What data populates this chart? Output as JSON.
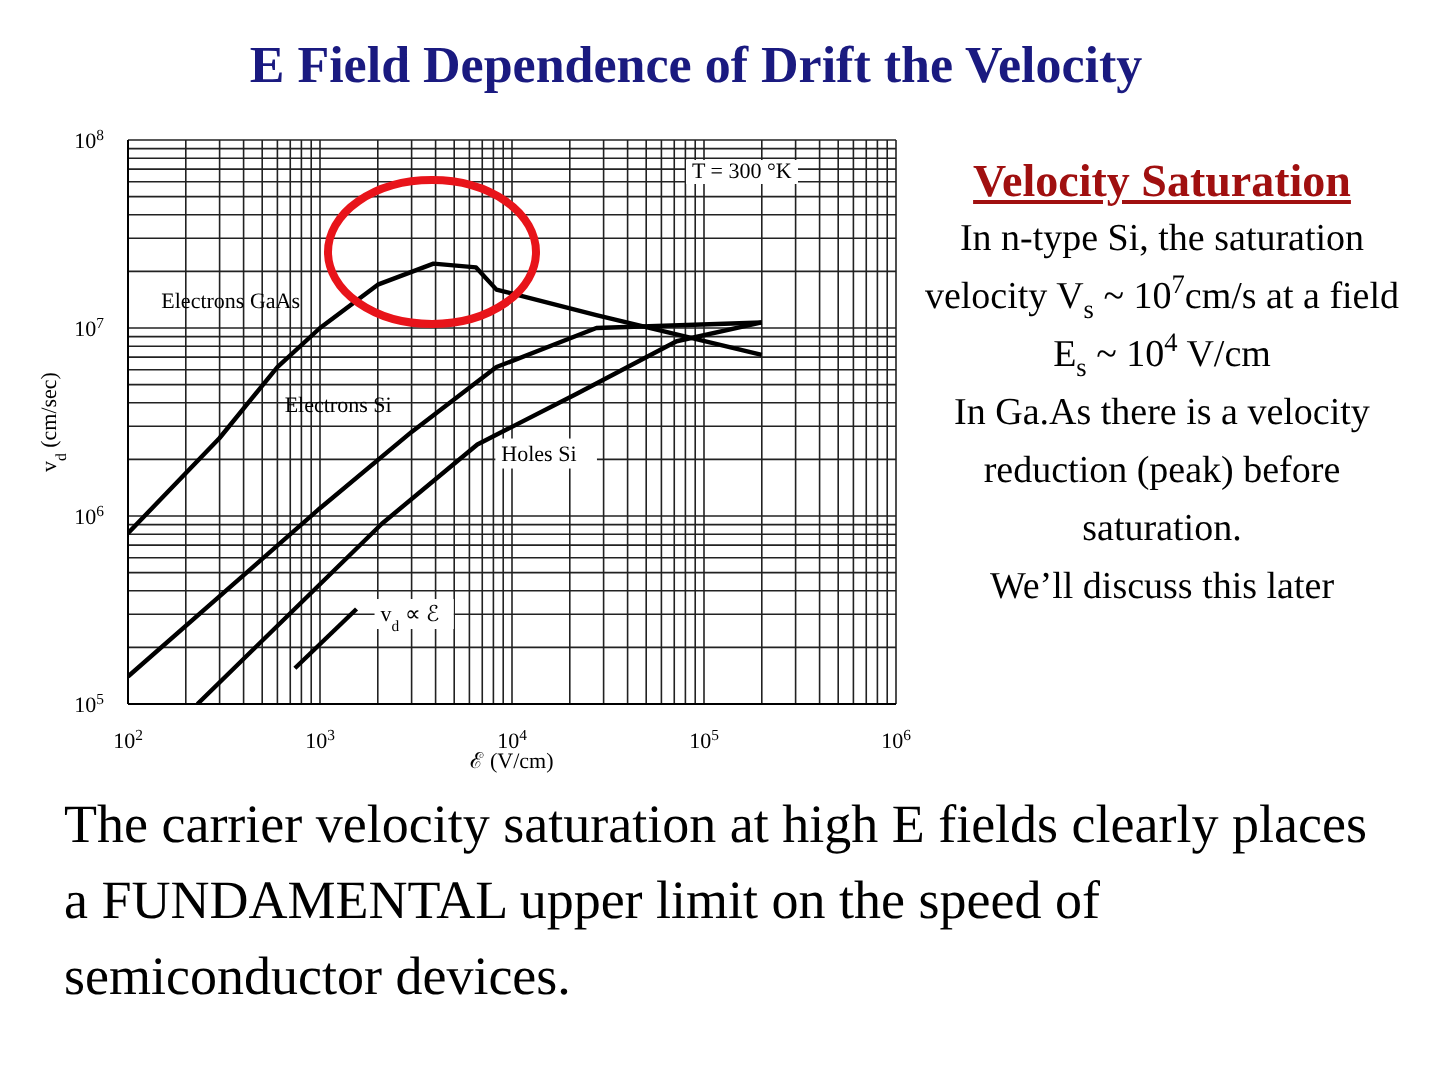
{
  "chart_data": {
    "type": "line",
    "title": "E Field Dependence of Drift the Velocity",
    "subtitle": "Velocity Saturation",
    "xlabel": "ℰ (V/cm)",
    "ylabel": "v$_{d}$ (cm/sec)",
    "annotations": [
      "T = 300 °K",
      "In n-type Si, the saturation velocity V$_{s}$ ~ 10$^{7}$cm/s at a field E$_{s}$ ~ 10$^{4}$ V/cm",
      "In Ga.As there is a velocity reduction (peak) before saturation.",
      "We’ll discuss this later",
      "The carrier velocity saturation at high E fields clearly places a FUNDAMENTAL upper limit on the speed of semiconductor devices."
    ],
    "log": "xy",
    "grid": true,
    "legend": false,
    "marker": "none",
    "line_style": "solid",
    "xlim": [
      100,
      1000000
    ],
    "ylim": [
      100000,
      100000000
    ],
    "xticks": [
      {
        "value": 100,
        "label": "10$^{2}$"
      },
      {
        "value": 200,
        "label": null
      },
      {
        "value": 300,
        "label": null
      },
      {
        "value": 400,
        "label": null
      },
      {
        "value": 500,
        "label": null
      },
      {
        "value": 600,
        "label": null
      },
      {
        "value": 700,
        "label": null
      },
      {
        "value": 800,
        "label": null
      },
      {
        "value": 900,
        "label": null
      },
      {
        "value": 1000,
        "label": "10$^{3}$"
      },
      {
        "value": 2000,
        "label": null
      },
      {
        "value": 3000,
        "label": null
      },
      {
        "value": 4000,
        "label": null
      },
      {
        "value": 5000,
        "label": null
      },
      {
        "value": 6000,
        "label": null
      },
      {
        "value": 7000,
        "label": null
      },
      {
        "value": 8000,
        "label": null
      },
      {
        "value": 9000,
        "label": null
      },
      {
        "value": 10000,
        "label": "10$^{4}$"
      },
      {
        "value": 20000,
        "label": null
      },
      {
        "value": 30000,
        "label": null
      },
      {
        "value": 40000,
        "label": null
      },
      {
        "value": 50000,
        "label": null
      },
      {
        "value": 60000,
        "label": null
      },
      {
        "value": 70000,
        "label": null
      },
      {
        "value": 80000,
        "label": null
      },
      {
        "value": 90000,
        "label": null
      },
      {
        "value": 100000,
        "label": "10$^{5}$"
      },
      {
        "value": 200000,
        "label": null
      },
      {
        "value": 300000,
        "label": null
      },
      {
        "value": 400000,
        "label": null
      },
      {
        "value": 500000,
        "label": null
      },
      {
        "value": 600000,
        "label": null
      },
      {
        "value": 700000,
        "label": null
      },
      {
        "value": 800000,
        "label": null
      },
      {
        "value": 900000,
        "label": null
      },
      {
        "value": 1000000,
        "label": "10$^{6}$"
      }
    ],
    "yticks": [
      {
        "value": 100000,
        "label": "10$^{5}$"
      },
      {
        "value": 200000,
        "label": null
      },
      {
        "value": 300000,
        "label": null
      },
      {
        "value": 400000,
        "label": null
      },
      {
        "value": 500000,
        "label": null
      },
      {
        "value": 600000,
        "label": null
      },
      {
        "value": 700000,
        "label": null
      },
      {
        "value": 800000,
        "label": null
      },
      {
        "value": 900000,
        "label": null
      },
      {
        "value": 1000000,
        "label": "10$^{6}$"
      },
      {
        "value": 2000000,
        "label": null
      },
      {
        "value": 3000000,
        "label": null
      },
      {
        "value": 4000000,
        "label": null
      },
      {
        "value": 5000000,
        "label": null
      },
      {
        "value": 6000000,
        "label": null
      },
      {
        "value": 7000000,
        "label": null
      },
      {
        "value": 8000000,
        "label": null
      },
      {
        "value": 9000000,
        "label": null
      },
      {
        "value": 10000000,
        "label": "10$^{7}$"
      },
      {
        "value": 20000000,
        "label": null
      },
      {
        "value": 30000000,
        "label": null
      },
      {
        "value": 40000000,
        "label": null
      },
      {
        "value": 50000000,
        "label": null
      },
      {
        "value": 60000000,
        "label": null
      },
      {
        "value": 70000000,
        "label": null
      },
      {
        "value": 80000000,
        "label": null
      },
      {
        "value": 90000000,
        "label": null
      },
      {
        "value": 100000000,
        "label": "10$^{8}$"
      }
    ],
    "series": [
      {
        "name": "Electrons GaAs",
        "color": "#000000",
        "x": [
          100,
          300,
          600,
          1000,
          2000,
          3900,
          6500,
          8300,
          27500,
          200000
        ],
        "values": [
          810000,
          2600000,
          6200000,
          10000000,
          17000000,
          22000000,
          21000000,
          16000000,
          11700000,
          7200000
        ]
      },
      {
        "name": "Electrons Si",
        "color": "#000000",
        "x": [
          100,
          1000,
          3000,
          8300,
          27500,
          200000
        ],
        "values": [
          140000,
          1100000,
          2800000,
          6200000,
          10000000,
          10700000
        ]
      },
      {
        "name": "Holes Si",
        "color": "#000000",
        "x": [
          230,
          2100,
          6600,
          22000,
          72000,
          200000
        ],
        "values": [
          100000,
          910000,
          2400000,
          4500000,
          8500000,
          10700000
        ]
      },
      {
        "name": "v$_{d}$ ∝ ℰ",
        "color": "#000000",
        "x": [
          740,
          1550
        ],
        "values": [
          155000,
          320000
        ]
      }
    ]
  }
}
